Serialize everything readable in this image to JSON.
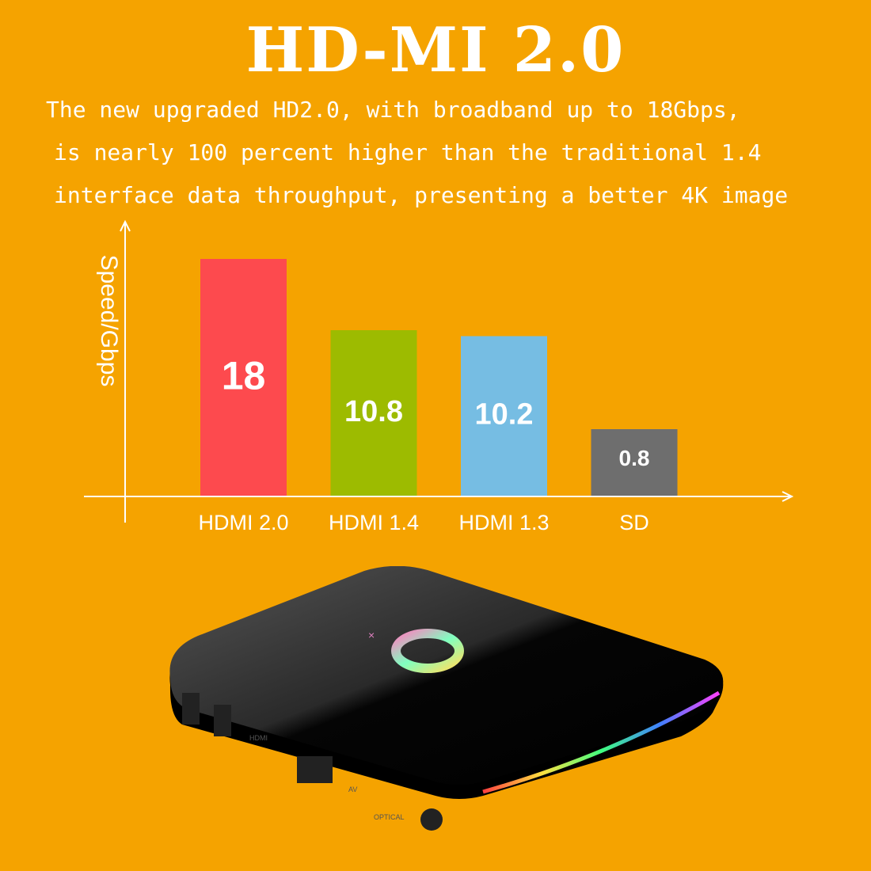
{
  "title": "HD-MI 2.0",
  "description_lines": [
    "The new upgraded HD2.0, with broadband up to 18Gbps,",
    "is nearly 100 percent higher than the traditional 1.4",
    "interface data throughput, presenting a better 4K image"
  ],
  "chart_data": {
    "type": "bar",
    "title": "",
    "xlabel": "",
    "ylabel": "Speed/Gbps",
    "categories": [
      "HDMI 2.0",
      "HDMI 1.4",
      "HDMI 1.3",
      "SD"
    ],
    "values": [
      18,
      10.8,
      10.2,
      0.8
    ],
    "data_labels": [
      "18",
      "10.8",
      "10.2",
      "0.8"
    ],
    "colors": [
      "#fd4a4e",
      "#9dbb00",
      "#76bde3",
      "#6e6e6e"
    ],
    "grid": false,
    "legend": "none"
  },
  "device": {
    "port_labels": [
      "HDMI",
      "AV",
      "OPTICAL"
    ],
    "body_color": "#0b0b0b"
  },
  "colors": {
    "background": "#f5a300",
    "text": "#ffffff"
  }
}
